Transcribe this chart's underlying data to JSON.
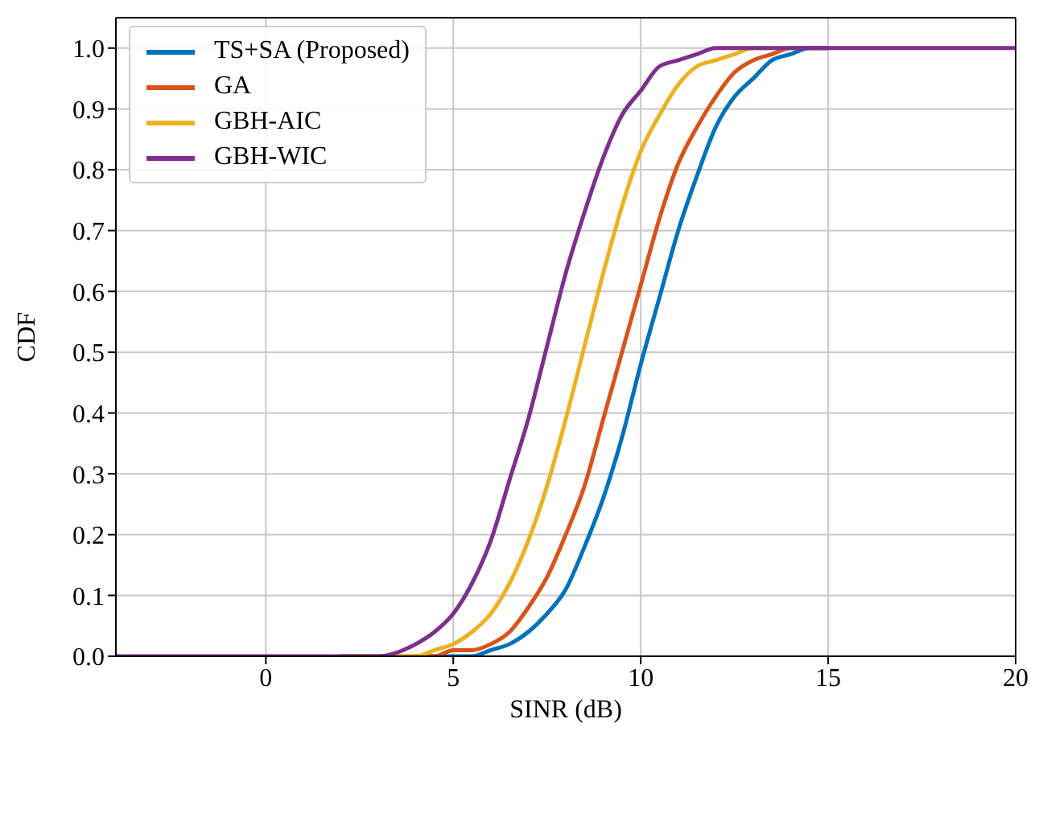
{
  "chart_data": {
    "type": "line",
    "xlabel": "SINR (dB)",
    "ylabel": "CDF",
    "x": [
      -4,
      0,
      2,
      3,
      4,
      4.5,
      5,
      5.5,
      6,
      6.5,
      7,
      7.5,
      8,
      8.5,
      9,
      9.5,
      10,
      10.5,
      11,
      11.5,
      12,
      12.5,
      13,
      13.5,
      14,
      14.5,
      15,
      16,
      20
    ],
    "series": [
      {
        "name": "TS+SA (Proposed)",
        "color": "#0072bd",
        "values": [
          null,
          null,
          null,
          null,
          0,
          0,
          0,
          0,
          0.01,
          0.02,
          0.04,
          0.07,
          0.11,
          0.18,
          0.26,
          0.36,
          0.48,
          0.59,
          0.7,
          0.79,
          0.87,
          0.92,
          0.95,
          0.98,
          0.99,
          1,
          1,
          null,
          null
        ]
      },
      {
        "name": "GA",
        "color": "#d95319",
        "values": [
          null,
          null,
          0,
          0,
          0,
          0,
          0.01,
          0.01,
          0.02,
          0.04,
          0.08,
          0.13,
          0.2,
          0.28,
          0.39,
          0.5,
          0.61,
          0.72,
          0.81,
          0.87,
          0.92,
          0.96,
          0.98,
          0.99,
          1,
          1,
          1,
          null,
          null
        ]
      },
      {
        "name": "GBH-AIC",
        "color": "#edb120",
        "values": [
          null,
          null,
          0,
          0,
          0,
          0.01,
          0.02,
          0.04,
          0.07,
          0.12,
          0.19,
          0.28,
          0.39,
          0.51,
          0.63,
          0.74,
          0.83,
          0.89,
          0.94,
          0.97,
          0.98,
          0.99,
          1,
          1,
          null,
          null,
          null,
          null,
          null
        ]
      },
      {
        "name": "GBH-WIC",
        "color": "#7e2f8e",
        "values": [
          0,
          0,
          0,
          0,
          0.02,
          0.04,
          0.07,
          0.12,
          0.19,
          0.29,
          0.39,
          0.51,
          0.63,
          0.73,
          0.82,
          0.89,
          0.93,
          0.97,
          0.98,
          0.99,
          1,
          1,
          1,
          1,
          1,
          1,
          1,
          1,
          1
        ]
      }
    ],
    "xlim": [
      -4,
      20
    ],
    "xticks": [
      0,
      5,
      10,
      15,
      20
    ],
    "ylim": [
      0,
      1.05
    ],
    "yticks": [
      {
        "value": 0,
        "label": "0.0"
      },
      {
        "value": 0.1,
        "label": "0.1"
      },
      {
        "value": 0.2,
        "label": "0.2"
      },
      {
        "value": 0.3,
        "label": "0.3"
      },
      {
        "value": 0.4,
        "label": "0.4"
      },
      {
        "value": 0.5,
        "label": "0.5"
      },
      {
        "value": 0.6,
        "label": "0.6"
      },
      {
        "value": 0.7,
        "label": "0.7"
      },
      {
        "value": 0.8,
        "label": "0.8"
      },
      {
        "value": 0.9,
        "label": "0.9"
      },
      {
        "value": 1,
        "label": "1.0"
      }
    ],
    "grid": true,
    "legend": "top left",
    "marker": "none",
    "line_style": "solid"
  }
}
